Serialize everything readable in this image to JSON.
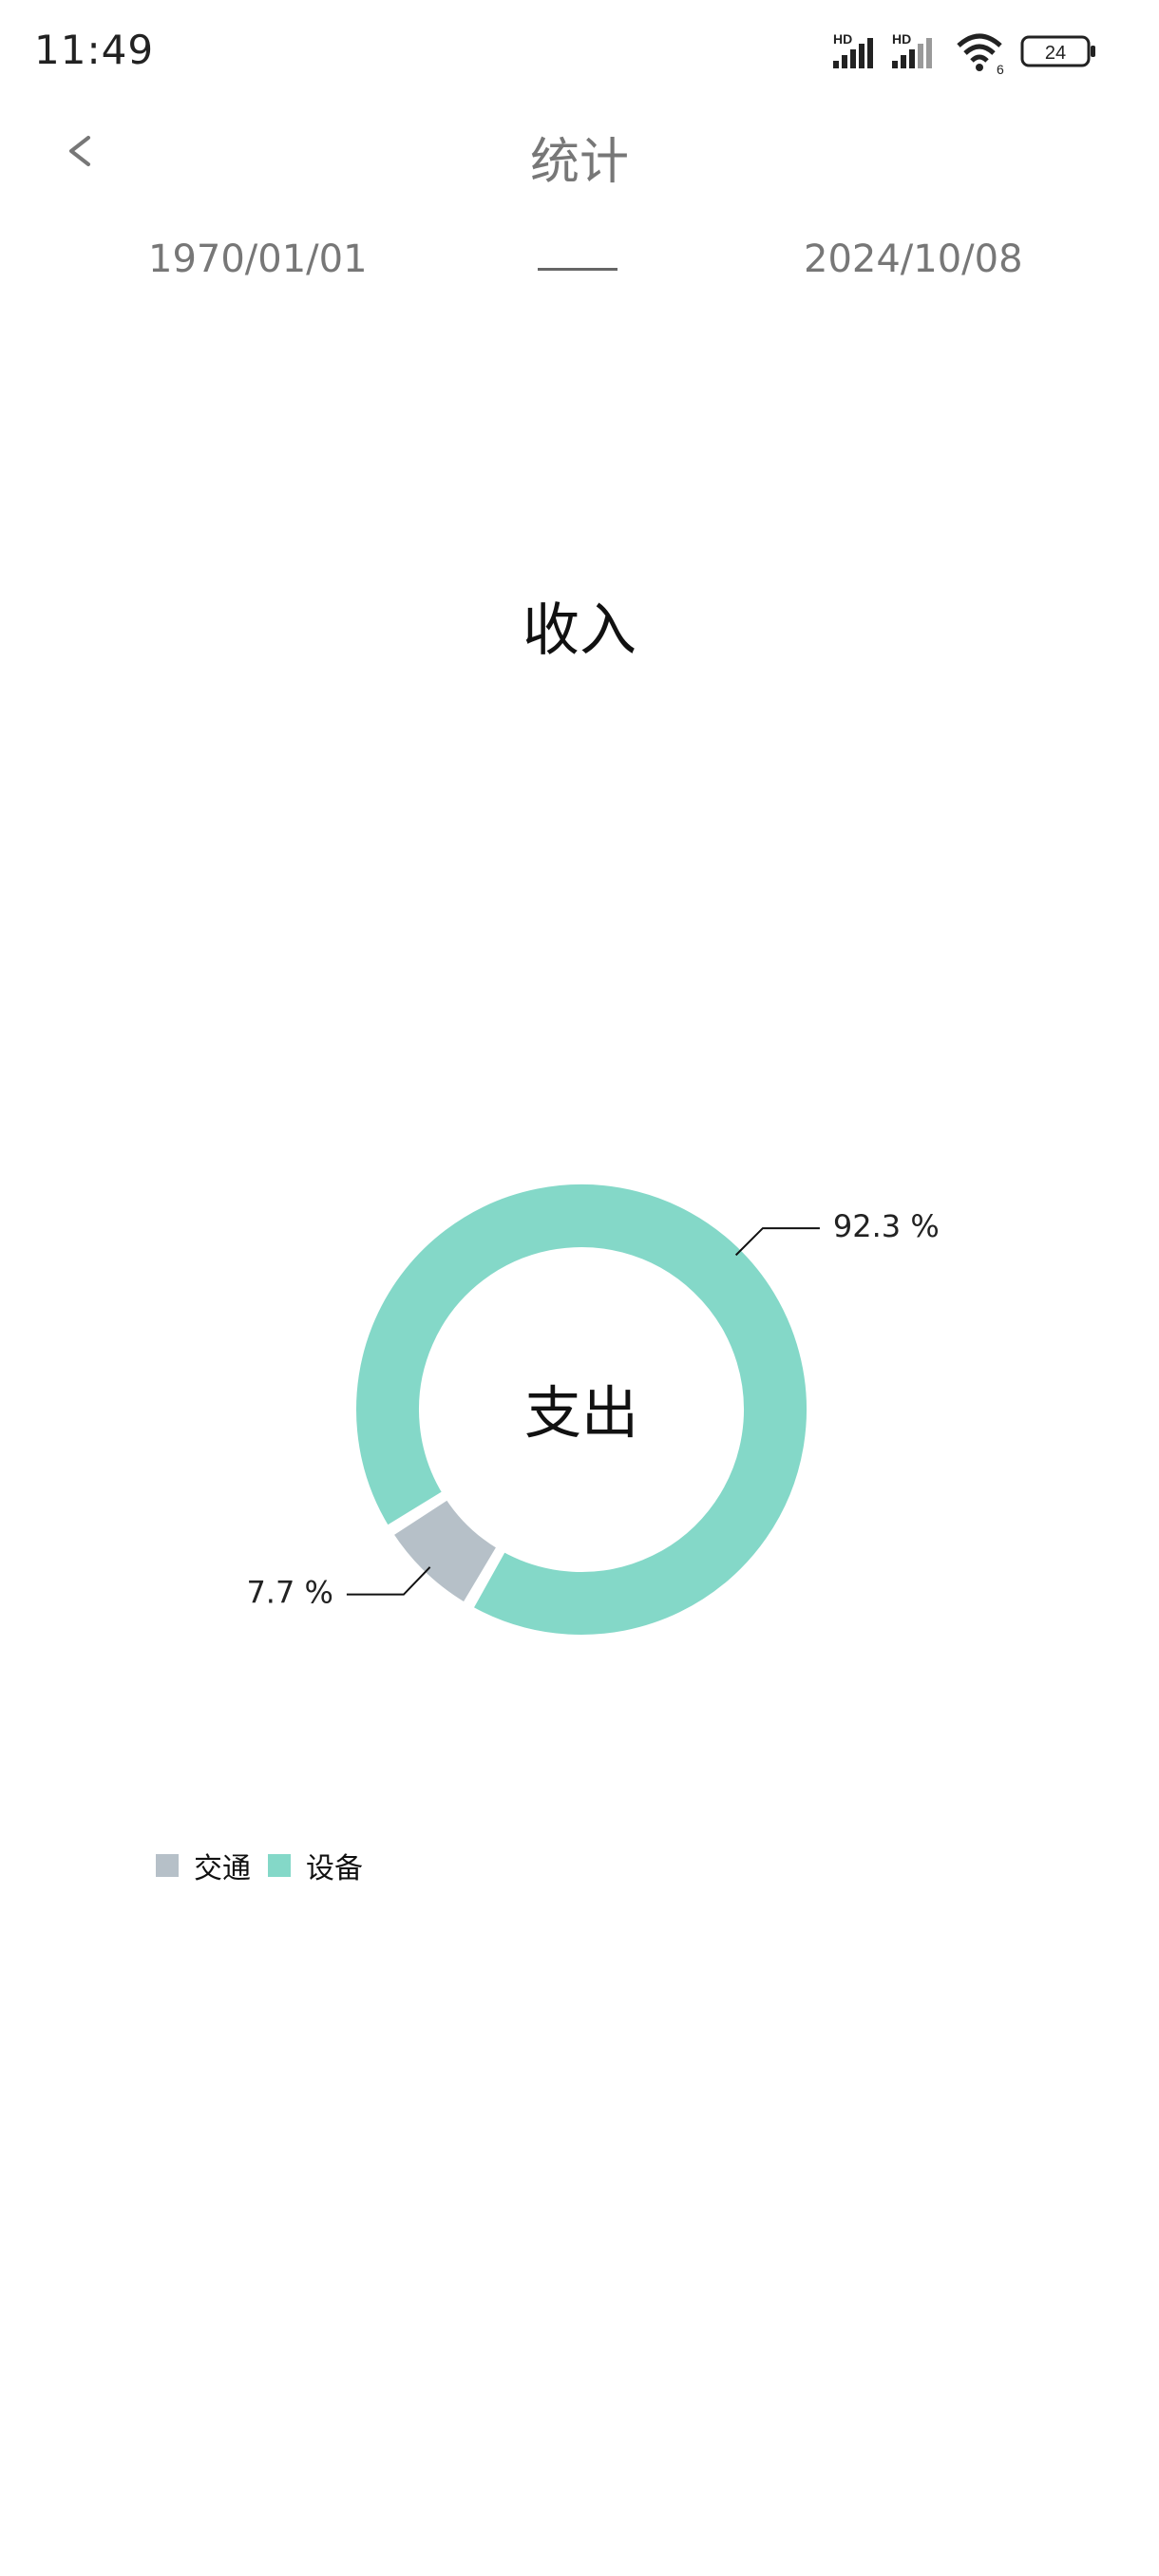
{
  "status_bar": {
    "time": "11:49",
    "battery": "24",
    "wifi_badge": "6",
    "signal_badge_1": "HD",
    "signal_badge_2": "HD"
  },
  "header": {
    "back_label": "<",
    "title": "统计"
  },
  "date_range": {
    "start": "1970/01/01",
    "end": "2024/10/08"
  },
  "income_title": "收入",
  "chart_data": {
    "type": "pie",
    "center_label": "支出",
    "donut": true,
    "slices": [
      {
        "name": "交通",
        "value": 7.7,
        "label": "7.7 %",
        "color": "#b6c0c8"
      },
      {
        "name": "设备",
        "value": 92.3,
        "label": "92.3 %",
        "color": "#84d8c8"
      }
    ],
    "legend_position": "bottom-left"
  }
}
